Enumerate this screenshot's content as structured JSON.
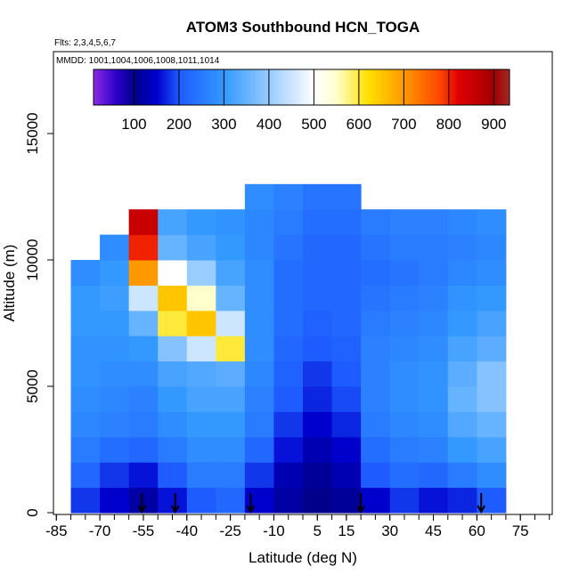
{
  "chart_data": {
    "type": "heatmap",
    "title": "ATOM3 Southbound HCN_TOGA",
    "subtitle": "Flts: 2,3,4,5,6,7",
    "annotation": "MMDD: 1001,1004,1006,1008,1011,1014",
    "xlabel": "Latitude (deg N)",
    "ylabel": "Altitude (m)",
    "xlim": [
      -86,
      86
    ],
    "ylim": [
      -70,
      18240
    ],
    "xticks": [
      -85,
      -70,
      -55,
      -40,
      -25,
      -10,
      5,
      15,
      30,
      45,
      60,
      75
    ],
    "xminorticks": [
      -85,
      -80,
      -75,
      -70,
      -65,
      -60,
      -55,
      -50,
      -45,
      -40,
      -35,
      -30,
      -25,
      -20,
      -15,
      -10,
      -5,
      0,
      5,
      10,
      15,
      20,
      25,
      30,
      35,
      40,
      45,
      50,
      55,
      60,
      65,
      70,
      75,
      80,
      85
    ],
    "yticks": [
      0,
      5000,
      10000,
      15000
    ],
    "xbins": [
      -80,
      -70,
      -60,
      -50,
      -40,
      -30,
      -20,
      -10,
      0,
      10,
      20,
      30,
      40,
      50,
      60,
      70
    ],
    "ybins": [
      0,
      1000,
      2000,
      3000,
      4000,
      5000,
      6000,
      7000,
      8000,
      9000,
      10000,
      11000,
      12000,
      13000
    ],
    "values": [
      [
        180,
        150,
        120,
        160,
        200,
        220,
        150,
        120,
        100,
        110,
        150,
        180,
        160,
        170,
        200
      ],
      [
        220,
        180,
        160,
        200,
        250,
        250,
        180,
        130,
        110,
        130,
        200,
        230,
        220,
        250,
        280
      ],
      [
        250,
        230,
        220,
        250,
        280,
        280,
        220,
        160,
        130,
        150,
        230,
        250,
        260,
        300,
        320
      ],
      [
        270,
        260,
        250,
        280,
        300,
        300,
        250,
        180,
        150,
        170,
        250,
        270,
        280,
        330,
        350
      ],
      [
        280,
        270,
        260,
        300,
        320,
        320,
        260,
        200,
        170,
        190,
        260,
        280,
        290,
        350,
        380
      ],
      [
        290,
        280,
        280,
        320,
        330,
        340,
        270,
        210,
        180,
        200,
        260,
        280,
        290,
        340,
        380
      ],
      [
        290,
        290,
        300,
        380,
        450,
        600,
        280,
        220,
        200,
        210,
        260,
        270,
        280,
        320,
        340
      ],
      [
        300,
        300,
        350,
        600,
        650,
        450,
        280,
        230,
        210,
        220,
        250,
        260,
        270,
        300,
        320
      ],
      [
        300,
        310,
        450,
        650,
        550,
        350,
        280,
        230,
        220,
        220,
        240,
        250,
        260,
        290,
        300
      ],
      [
        280,
        300,
        700,
        500,
        400,
        320,
        280,
        230,
        220,
        220,
        230,
        240,
        250,
        270,
        280
      ],
      [
        null,
        280,
        800,
        350,
        320,
        300,
        270,
        240,
        220,
        220,
        240,
        250,
        250,
        260,
        270
      ],
      [
        null,
        null,
        850,
        320,
        300,
        290,
        270,
        250,
        230,
        230,
        250,
        260,
        260,
        270,
        280
      ],
      [
        null,
        null,
        null,
        null,
        null,
        null,
        280,
        260,
        240,
        240,
        null,
        null,
        null,
        null,
        null
      ]
    ],
    "colorbar_lim": [
      10,
      935
    ],
    "colorbar_ticks": [
      100,
      200,
      300,
      400,
      500,
      600,
      700,
      800,
      900
    ],
    "colorscale": [
      [
        10,
        "#8a2be2"
      ],
      [
        60,
        "#2a00c8"
      ],
      [
        100,
        "#00008b"
      ],
      [
        150,
        "#0000cd"
      ],
      [
        200,
        "#1e5cff"
      ],
      [
        300,
        "#3399ff"
      ],
      [
        400,
        "#99ccff"
      ],
      [
        500,
        "#ffffff"
      ],
      [
        550,
        "#ffffcc"
      ],
      [
        620,
        "#ffe000"
      ],
      [
        700,
        "#ff9900"
      ],
      [
        780,
        "#ff4400"
      ],
      [
        820,
        "#e00000"
      ],
      [
        900,
        "#a00000"
      ],
      [
        935,
        "#a52a2a"
      ]
    ],
    "arrows": [
      -55.5,
      -44,
      -18,
      20,
      61.5
    ]
  }
}
